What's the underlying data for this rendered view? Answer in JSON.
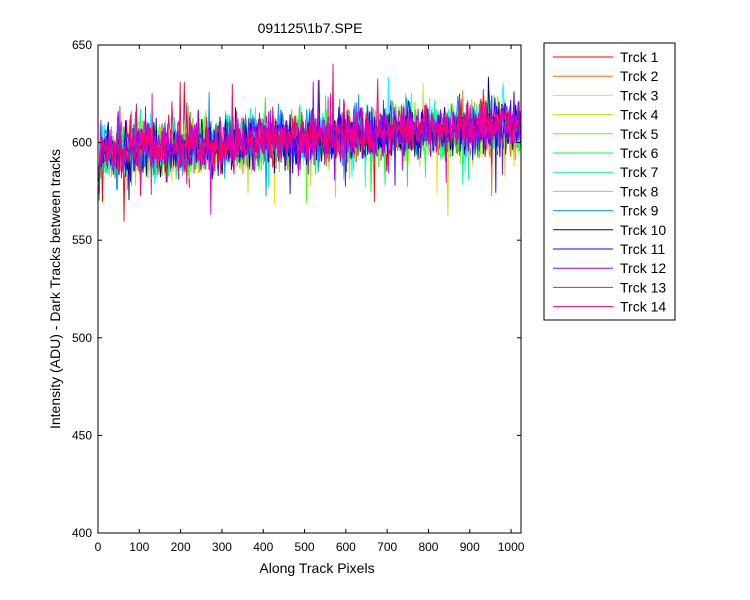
{
  "chart_data": {
    "type": "line",
    "title": "091125\\1b7.SPE",
    "xlabel": "Along Track Pixels",
    "ylabel": "Intensity (ADU) - Dark Tracks between tracks",
    "xlim": [
      0,
      1024
    ],
    "ylim": [
      400,
      650
    ],
    "xticks": [
      0,
      100,
      200,
      300,
      400,
      500,
      600,
      700,
      800,
      900,
      1000
    ],
    "yticks": [
      400,
      450,
      500,
      550,
      600,
      650
    ],
    "grid": false,
    "legend_position": "outside-top-right",
    "x": {
      "start": 1,
      "end": 1024
    },
    "series_trend": {
      "start": 595,
      "end": 609
    },
    "series": [
      {
        "name": "Trck 1",
        "color": "#ff0000"
      },
      {
        "name": "Trck 2",
        "color": "#ff6e00"
      },
      {
        "name": "Trck 3",
        "color": "#ffdc00"
      },
      {
        "name": "Trck 4",
        "color": "#b4e600"
      },
      {
        "name": "Trck 5",
        "color": "#46ff00"
      },
      {
        "name": "Trck 6",
        "color": "#00ff28"
      },
      {
        "name": "Trck 7",
        "color": "#00ff96"
      },
      {
        "name": "Trck 8",
        "color": "#00ffff"
      },
      {
        "name": "Trck 9",
        "color": "#0096ff"
      },
      {
        "name": "Trck 10",
        "color": "#000080"
      },
      {
        "name": "Trck 11",
        "color": "#1e00ff"
      },
      {
        "name": "Trck 12",
        "color": "#8c00ff"
      },
      {
        "name": "Trck 13",
        "color": "#e600c8"
      },
      {
        "name": "Trck 14",
        "color": "#ff0064"
      }
    ]
  }
}
